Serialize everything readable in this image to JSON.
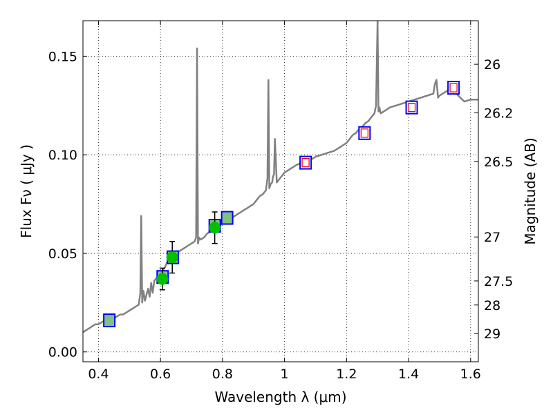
{
  "chart_data": {
    "type": "line",
    "xlabel": "Wavelength  λ (μm)",
    "ylabel": "Flux  Fν  ( μJy )",
    "y2label": "Magnitude (AB)",
    "xlim": [
      0.35,
      1.625
    ],
    "ylim": [
      -0.005,
      0.168
    ],
    "grid": true,
    "x_ticks": [
      {
        "v": 0.4,
        "label": "0.4"
      },
      {
        "v": 0.6,
        "label": "0.6"
      },
      {
        "v": 0.8,
        "label": "0.8"
      },
      {
        "v": 1.0,
        "label": "1"
      },
      {
        "v": 1.2,
        "label": "1.2"
      },
      {
        "v": 1.4,
        "label": "1.4"
      },
      {
        "v": 1.6,
        "label": "1.6"
      }
    ],
    "y_ticks": [
      {
        "v": 0.0,
        "label": "0.00"
      },
      {
        "v": 0.05,
        "label": "0.05"
      },
      {
        "v": 0.1,
        "label": "0.10"
      },
      {
        "v": 0.15,
        "label": "0.15"
      }
    ],
    "mag_ticks": [
      {
        "flux": 0.1459,
        "label": "26"
      },
      {
        "flux": 0.1213,
        "label": "26.2"
      },
      {
        "flux": 0.0966,
        "label": "26.5"
      },
      {
        "flux": 0.0583,
        "label": "27"
      },
      {
        "flux": 0.036,
        "label": "27.5"
      },
      {
        "flux": 0.0238,
        "label": "28"
      },
      {
        "flux": 0.0093,
        "label": "29"
      }
    ],
    "series": [
      {
        "kind": "model_spectrum",
        "color": "#808080",
        "x": [
          0.35,
          0.36,
          0.37,
          0.38,
          0.39,
          0.4,
          0.41,
          0.42,
          0.43,
          0.44,
          0.45,
          0.46,
          0.47,
          0.48,
          0.49,
          0.5,
          0.51,
          0.52,
          0.53,
          0.535,
          0.538,
          0.541,
          0.545,
          0.55,
          0.56,
          0.565,
          0.57,
          0.575,
          0.58,
          0.59,
          0.6,
          0.61,
          0.615,
          0.62,
          0.625,
          0.63,
          0.64,
          0.65,
          0.66,
          0.67,
          0.68,
          0.69,
          0.7,
          0.71,
          0.715,
          0.718,
          0.721,
          0.725,
          0.73,
          0.74,
          0.75,
          0.76,
          0.77,
          0.78,
          0.79,
          0.8,
          0.81,
          0.82,
          0.83,
          0.84,
          0.85,
          0.86,
          0.87,
          0.88,
          0.89,
          0.9,
          0.91,
          0.92,
          0.93,
          0.94,
          0.945,
          0.948,
          0.951,
          0.955,
          0.96,
          0.963,
          0.966,
          0.969,
          0.975,
          0.98,
          0.99,
          1.0,
          1.02,
          1.04,
          1.06,
          1.08,
          1.1,
          1.12,
          1.14,
          1.16,
          1.18,
          1.2,
          1.21,
          1.22,
          1.23,
          1.24,
          1.25,
          1.26,
          1.27,
          1.28,
          1.29,
          1.295,
          1.3,
          1.303,
          1.306,
          1.31,
          1.32,
          1.33,
          1.34,
          1.36,
          1.38,
          1.4,
          1.42,
          1.44,
          1.46,
          1.48,
          1.485,
          1.49,
          1.495,
          1.5,
          1.52,
          1.54,
          1.56,
          1.58,
          1.6,
          1.625
        ],
        "y": [
          0.01,
          0.011,
          0.012,
          0.013,
          0.014,
          0.014,
          0.015,
          0.016,
          0.016,
          0.017,
          0.017,
          0.018,
          0.019,
          0.019,
          0.02,
          0.021,
          0.022,
          0.023,
          0.024,
          0.03,
          0.069,
          0.025,
          0.031,
          0.026,
          0.032,
          0.028,
          0.035,
          0.03,
          0.036,
          0.038,
          0.04,
          0.042,
          0.043,
          0.045,
          0.046,
          0.047,
          0.049,
          0.05,
          0.051,
          0.052,
          0.053,
          0.054,
          0.055,
          0.056,
          0.058,
          0.154,
          0.055,
          0.058,
          0.057,
          0.058,
          0.06,
          0.061,
          0.062,
          0.063,
          0.064,
          0.065,
          0.066,
          0.067,
          0.068,
          0.069,
          0.07,
          0.071,
          0.072,
          0.073,
          0.074,
          0.075,
          0.077,
          0.079,
          0.08,
          0.082,
          0.088,
          0.138,
          0.083,
          0.085,
          0.086,
          0.089,
          0.09,
          0.108,
          0.086,
          0.087,
          0.089,
          0.091,
          0.093,
          0.095,
          0.096,
          0.097,
          0.099,
          0.1,
          0.101,
          0.102,
          0.104,
          0.106,
          0.108,
          0.11,
          0.111,
          0.113,
          0.114,
          0.116,
          0.117,
          0.119,
          0.121,
          0.125,
          0.168,
          0.122,
          0.124,
          0.121,
          0.122,
          0.123,
          0.124,
          0.125,
          0.126,
          0.127,
          0.128,
          0.129,
          0.13,
          0.131,
          0.136,
          0.138,
          0.129,
          0.13,
          0.132,
          0.134,
          0.13,
          0.127,
          0.128,
          0.128
        ]
      },
      {
        "kind": "model_boxes",
        "edgecolor": "#0000ff",
        "fillcolor": "#80c080",
        "x": [
          0.435,
          0.607,
          0.64,
          0.775,
          0.815
        ],
        "y": [
          0.016,
          0.038,
          0.048,
          0.064,
          0.068
        ]
      },
      {
        "kind": "model_boxes",
        "edgecolor": "#0000ff",
        "fillcolor": "#ffffff",
        "inner": "#ff0000",
        "x": [
          1.068,
          1.258,
          1.41,
          1.545
        ],
        "y": [
          0.096,
          0.111,
          0.124,
          0.134
        ]
      },
      {
        "kind": "observed",
        "color": "#00c000",
        "x": [
          0.606,
          0.638,
          0.775
        ],
        "y": [
          0.037,
          0.048,
          0.063
        ],
        "err": [
          0.0055,
          0.008,
          0.008
        ]
      }
    ]
  }
}
